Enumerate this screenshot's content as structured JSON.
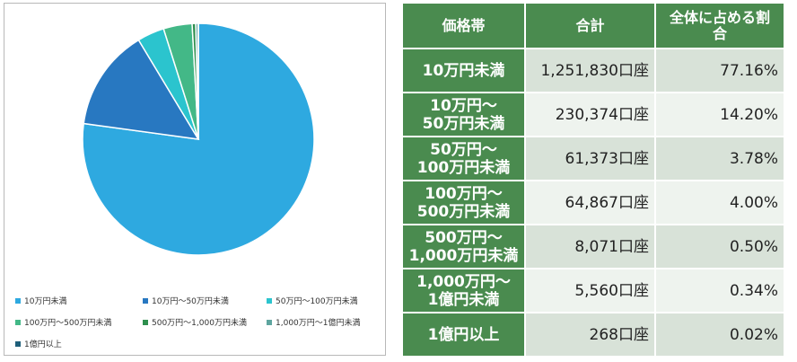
{
  "chart_data": {
    "type": "pie",
    "start_angle_deg": 0,
    "direction": "clockwise",
    "series": [
      {
        "name": "10万円未満",
        "value": 77.16,
        "color": "#2EA9E0"
      },
      {
        "name": "10万円～50万円未満",
        "value": 14.2,
        "color": "#2878C1"
      },
      {
        "name": "50万円～100万円未満",
        "value": 3.78,
        "color": "#2BC4CE"
      },
      {
        "name": "100万円～500万円未満",
        "value": 4.0,
        "color": "#43B887"
      },
      {
        "name": "500万円～1,000万円未満",
        "value": 0.5,
        "color": "#2E8F4E"
      },
      {
        "name": "1,000万円～1億円未満",
        "value": 0.34,
        "color": "#5EA59F"
      },
      {
        "name": "1億円以上",
        "value": 0.02,
        "color": "#1E5F7A"
      }
    ]
  },
  "table": {
    "headers": [
      "価格帯",
      "合計",
      "全体に占める割\n合"
    ],
    "rows": [
      {
        "label": "10万円未満",
        "total": "1,251,830口座",
        "share": "77.16%"
      },
      {
        "label": "10万円～\n50万円未満",
        "total": "230,374口座",
        "share": "14.20%"
      },
      {
        "label": "50万円～\n100万円未満",
        "total": "61,373口座",
        "share": "3.78%"
      },
      {
        "label": "100万円～\n500万円未満",
        "total": "64,867口座",
        "share": "4.00%"
      },
      {
        "label": "500万円～\n1,000万円未満",
        "total": "8,071口座",
        "share": "0.50%"
      },
      {
        "label": "1,000万円～\n1億円未満",
        "total": "5,560口座",
        "share": "0.34%"
      },
      {
        "label": "1億円以上",
        "total": "268口座",
        "share": "0.02%"
      }
    ]
  }
}
